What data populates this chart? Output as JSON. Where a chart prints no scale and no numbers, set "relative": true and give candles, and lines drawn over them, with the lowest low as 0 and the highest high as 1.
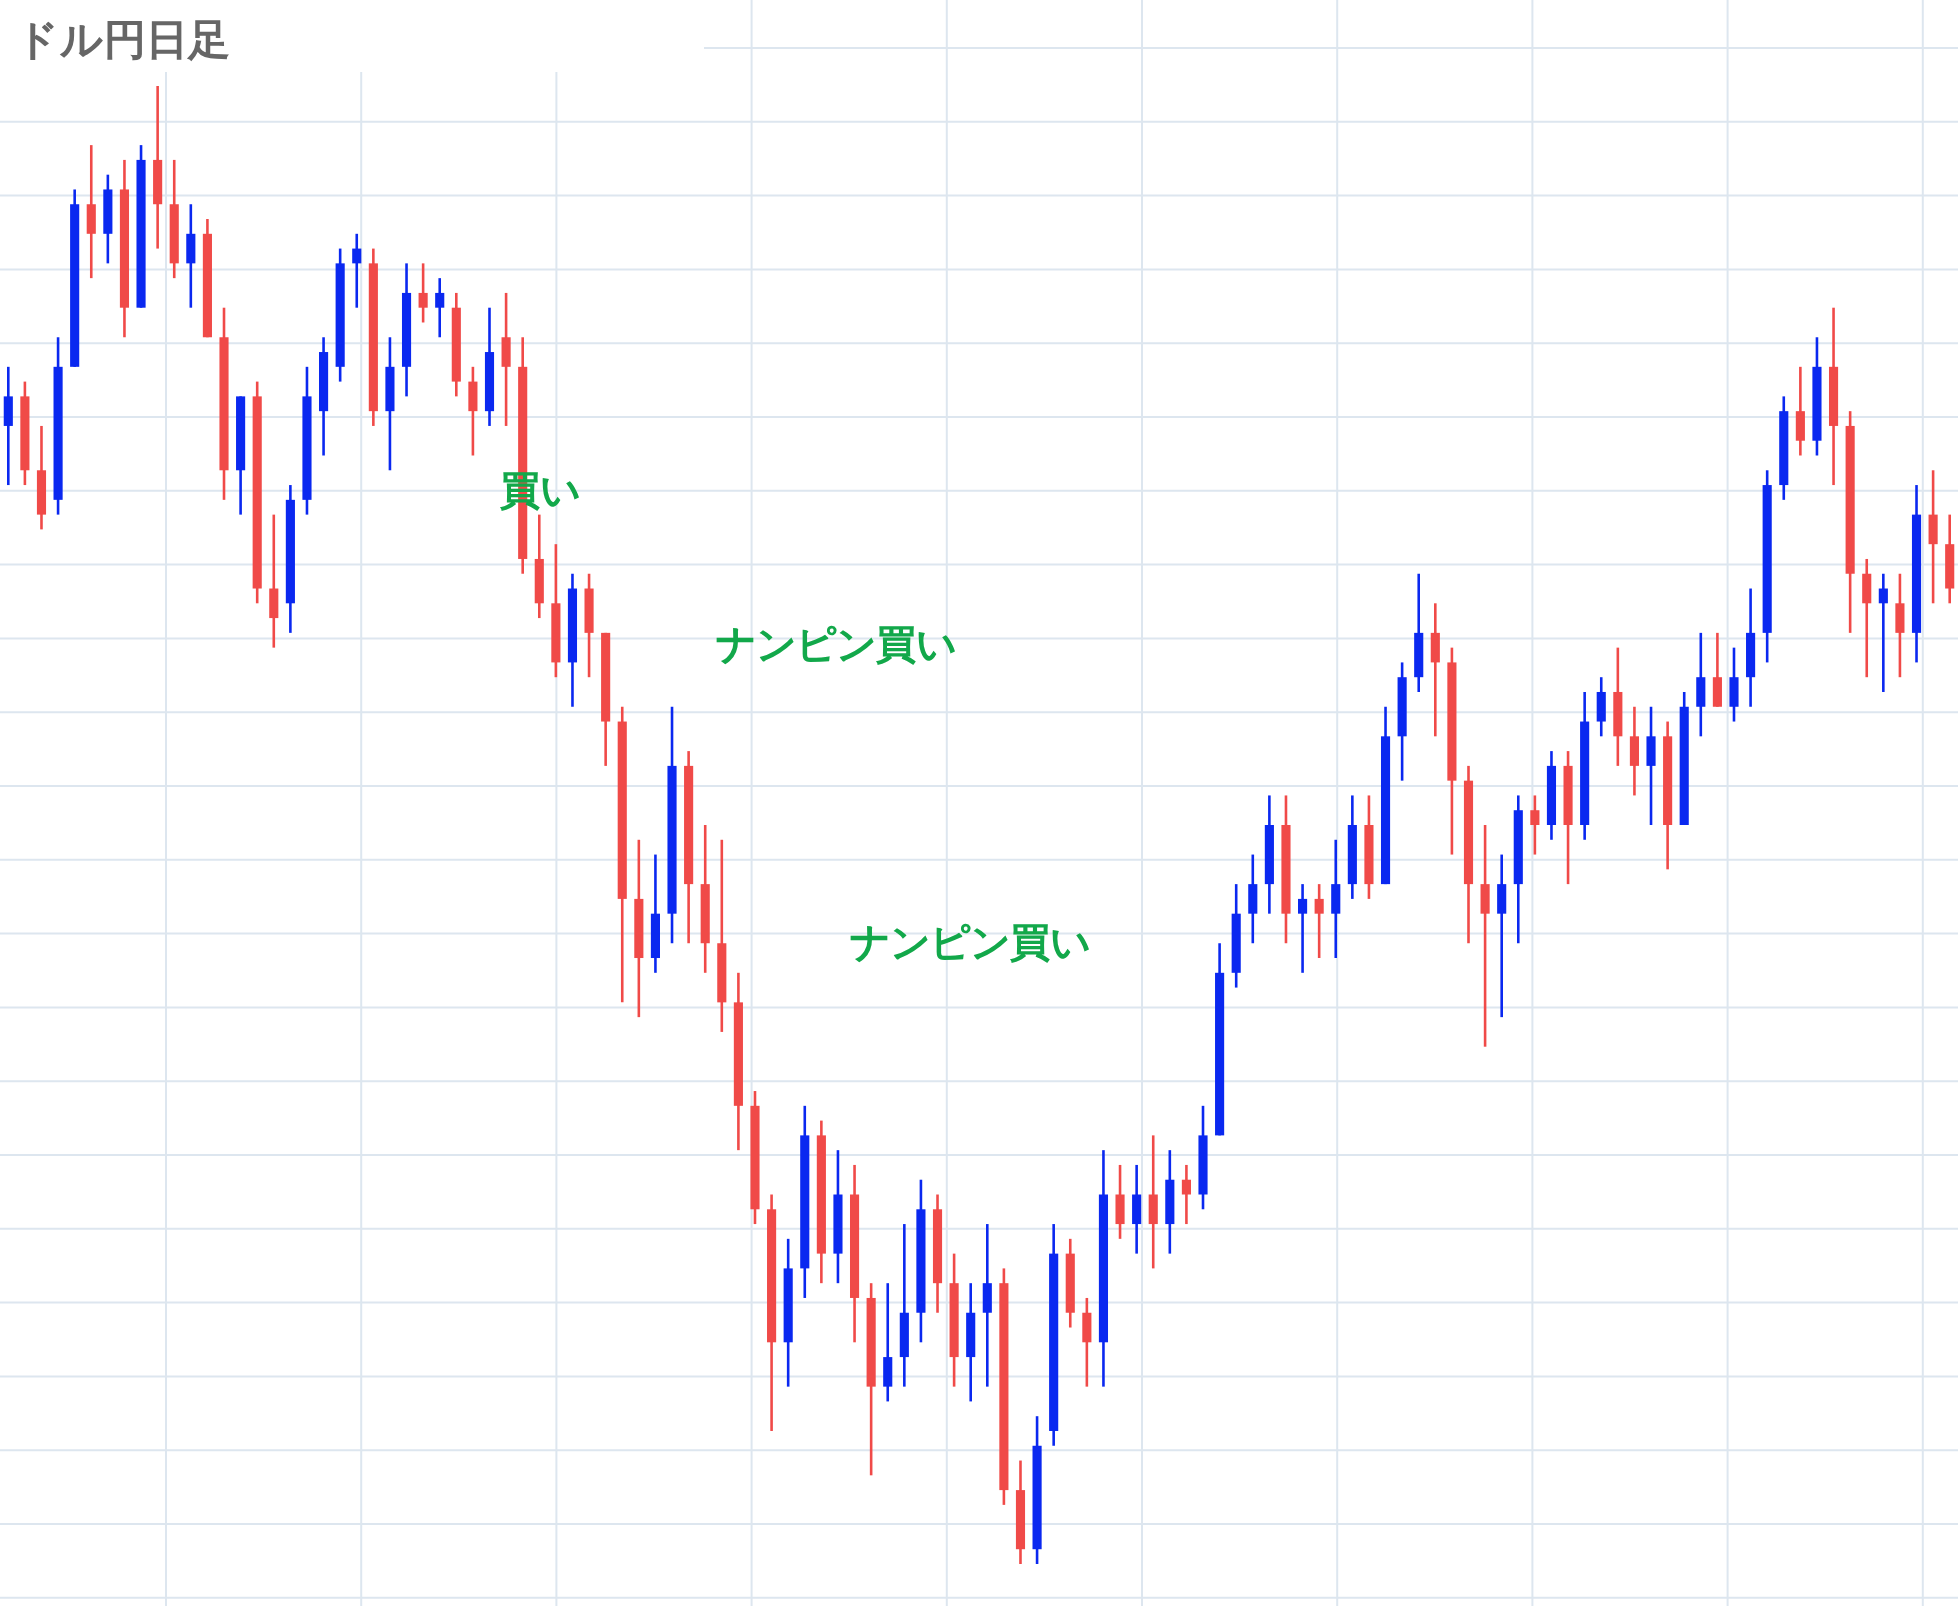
{
  "chart_data": {
    "type": "candlestick",
    "title": "ドル円日足",
    "relative": true,
    "grid": true,
    "colors": [
      "#0a28f0",
      "#f04a48",
      "#f04a48",
      "#0a28f0",
      "#0a28f0",
      "#f04a48",
      "#0a28f0",
      "#f04a48",
      "#0a28f0",
      "#f04a48",
      "#f04a48",
      "#0a28f0",
      "#f04a48",
      "#f04a48",
      "#0a28f0",
      "#f04a48",
      "#f04a48",
      "#0a28f0",
      "#0a28f0",
      "#0a28f0",
      "#0a28f0",
      "#0a28f0",
      "#f04a48",
      "#0a28f0",
      "#0a28f0",
      "#f04a48",
      "#0a28f0",
      "#f04a48",
      "#f04a48",
      "#0a28f0",
      "#f04a48",
      "#f04a48",
      "#f04a48",
      "#f04a48",
      "#0a28f0",
      "#f04a48",
      "#f04a48",
      "#f04a48",
      "#f04a48",
      "#0a28f0",
      "#0a28f0",
      "#f04a48",
      "#f04a48",
      "#f04a48",
      "#f04a48",
      "#f04a48",
      "#f04a48",
      "#0a28f0",
      "#0a28f0",
      "#f04a48",
      "#0a28f0",
      "#f04a48",
      "#f04a48",
      "#0a28f0",
      "#0a28f0",
      "#0a28f0",
      "#f04a48",
      "#f04a48",
      "#0a28f0",
      "#0a28f0",
      "#f04a48",
      "#f04a48",
      "#0a28f0",
      "#0a28f0",
      "#f04a48",
      "#f04a48",
      "#0a28f0",
      "#f04a48",
      "#0a28f0",
      "#f04a48",
      "#0a28f0",
      "#f04a48",
      "#0a28f0",
      "#0a28f0",
      "#0a28f0",
      "#0a28f0",
      "#0a28f0",
      "#f04a48",
      "#0a28f0",
      "#f04a48",
      "#0a28f0",
      "#0a28f0",
      "#f04a48",
      "#0a28f0",
      "#0a28f0",
      "#0a28f0",
      "#f04a48",
      "#f04a48",
      "#f04a48",
      "#f04a48",
      "#0a28f0",
      "#0a28f0",
      "#f04a48",
      "#0a28f0",
      "#f04a48",
      "#0a28f0",
      "#0a28f0",
      "#f04a48",
      "#f04a48",
      "#0a28f0",
      "#f04a48",
      "#0a28f0",
      "#0a28f0",
      "#f04a48",
      "#0a28f0",
      "#0a28f0",
      "#0a28f0",
      "#0a28f0",
      "#f04a48",
      "#0a28f0",
      "#f04a48",
      "#f04a48",
      "#f04a48",
      "#0a28f0",
      "#f04a48",
      "#0a28f0",
      "#f04a48",
      "#f04a48"
    ],
    "annotations": [
      "買い",
      "ナンピン買い",
      "ナンピン買い"
    ],
    "categories": [
      null,
      null,
      null,
      null,
      null,
      null,
      null,
      null,
      null,
      null,
      null,
      null,
      null,
      null,
      null,
      null,
      null,
      null,
      null,
      null,
      null,
      null,
      null,
      null,
      null,
      null,
      null,
      null,
      null,
      null,
      null,
      null,
      null,
      null,
      null,
      null,
      null,
      null,
      null,
      null,
      null,
      null,
      null,
      null,
      null,
      null,
      null,
      null,
      null,
      null,
      null,
      null,
      null,
      null,
      null,
      null,
      null,
      null,
      null,
      null,
      null,
      null,
      null,
      null,
      null,
      null,
      null,
      null,
      null,
      null,
      null,
      null,
      null,
      null,
      null,
      null,
      null,
      null,
      null,
      null,
      null,
      null,
      null,
      null,
      null,
      null,
      null,
      null,
      null,
      null,
      null,
      null,
      null,
      null,
      null,
      null,
      null,
      null,
      null,
      null,
      null,
      null,
      null,
      null,
      null,
      null,
      null,
      null,
      null,
      null,
      null,
      null,
      null,
      null,
      null,
      null,
      null,
      null
    ],
    "ohlc": [
      [
        0.77,
        0.81,
        0.73,
        0.79
      ],
      [
        0.79,
        0.8,
        0.73,
        0.74
      ],
      [
        0.74,
        0.77,
        0.7,
        0.71
      ],
      [
        0.72,
        0.83,
        0.71,
        0.81
      ],
      [
        0.81,
        0.93,
        0.81,
        0.92
      ],
      [
        0.92,
        0.96,
        0.87,
        0.9
      ],
      [
        0.9,
        0.94,
        0.88,
        0.93
      ],
      [
        0.93,
        0.95,
        0.83,
        0.85
      ],
      [
        0.85,
        0.96,
        0.85,
        0.95
      ],
      [
        0.95,
        1.0,
        0.89,
        0.92
      ],
      [
        0.92,
        0.95,
        0.87,
        0.88
      ],
      [
        0.88,
        0.92,
        0.85,
        0.9
      ],
      [
        0.9,
        0.91,
        0.83,
        0.83
      ],
      [
        0.83,
        0.85,
        0.72,
        0.74
      ],
      [
        0.74,
        0.79,
        0.71,
        0.79
      ],
      [
        0.79,
        0.8,
        0.65,
        0.66
      ],
      [
        0.66,
        0.71,
        0.62,
        0.64
      ],
      [
        0.65,
        0.73,
        0.63,
        0.72
      ],
      [
        0.72,
        0.81,
        0.71,
        0.79
      ],
      [
        0.78,
        0.83,
        0.75,
        0.82
      ],
      [
        0.81,
        0.89,
        0.8,
        0.88
      ],
      [
        0.88,
        0.9,
        0.85,
        0.89
      ],
      [
        0.88,
        0.89,
        0.77,
        0.78
      ],
      [
        0.78,
        0.83,
        0.74,
        0.81
      ],
      [
        0.81,
        0.88,
        0.79,
        0.86
      ],
      [
        0.86,
        0.88,
        0.84,
        0.85
      ],
      [
        0.85,
        0.87,
        0.83,
        0.86
      ],
      [
        0.85,
        0.86,
        0.79,
        0.8
      ],
      [
        0.8,
        0.81,
        0.75,
        0.78
      ],
      [
        0.78,
        0.85,
        0.77,
        0.82
      ],
      [
        0.83,
        0.86,
        0.77,
        0.81
      ],
      [
        0.81,
        0.83,
        0.67,
        0.68
      ],
      [
        0.68,
        0.71,
        0.64,
        0.65
      ],
      [
        0.65,
        0.69,
        0.6,
        0.61
      ],
      [
        0.61,
        0.67,
        0.58,
        0.66
      ],
      [
        0.66,
        0.67,
        0.6,
        0.63
      ],
      [
        0.63,
        0.63,
        0.54,
        0.57
      ],
      [
        0.57,
        0.58,
        0.38,
        0.45
      ],
      [
        0.45,
        0.49,
        0.37,
        0.41
      ],
      [
        0.41,
        0.48,
        0.4,
        0.44
      ],
      [
        0.44,
        0.58,
        0.42,
        0.54
      ],
      [
        0.54,
        0.55,
        0.42,
        0.46
      ],
      [
        0.46,
        0.5,
        0.4,
        0.42
      ],
      [
        0.42,
        0.49,
        0.36,
        0.38
      ],
      [
        0.38,
        0.4,
        0.28,
        0.31
      ],
      [
        0.31,
        0.32,
        0.23,
        0.24
      ],
      [
        0.24,
        0.25,
        0.09,
        0.15
      ],
      [
        0.15,
        0.22,
        0.12,
        0.2
      ],
      [
        0.2,
        0.31,
        0.18,
        0.29
      ],
      [
        0.29,
        0.3,
        0.19,
        0.21
      ],
      [
        0.21,
        0.28,
        0.19,
        0.25
      ],
      [
        0.25,
        0.27,
        0.15,
        0.18
      ],
      [
        0.18,
        0.19,
        0.06,
        0.12
      ],
      [
        0.12,
        0.19,
        0.11,
        0.14
      ],
      [
        0.14,
        0.23,
        0.12,
        0.17
      ],
      [
        0.17,
        0.26,
        0.15,
        0.24
      ],
      [
        0.24,
        0.25,
        0.17,
        0.19
      ],
      [
        0.19,
        0.21,
        0.12,
        0.14
      ],
      [
        0.14,
        0.19,
        0.11,
        0.17
      ],
      [
        0.17,
        0.23,
        0.12,
        0.19
      ],
      [
        0.19,
        0.2,
        0.04,
        0.05
      ],
      [
        0.05,
        0.07,
        0.0,
        0.01
      ],
      [
        0.01,
        0.1,
        0.0,
        0.08
      ],
      [
        0.09,
        0.23,
        0.08,
        0.21
      ],
      [
        0.21,
        0.22,
        0.16,
        0.17
      ],
      [
        0.17,
        0.18,
        0.12,
        0.15
      ],
      [
        0.15,
        0.28,
        0.12,
        0.25
      ],
      [
        0.25,
        0.27,
        0.22,
        0.23
      ],
      [
        0.23,
        0.27,
        0.21,
        0.25
      ],
      [
        0.25,
        0.29,
        0.2,
        0.23
      ],
      [
        0.23,
        0.28,
        0.21,
        0.26
      ],
      [
        0.26,
        0.27,
        0.23,
        0.25
      ],
      [
        0.25,
        0.31,
        0.24,
        0.29
      ],
      [
        0.29,
        0.42,
        0.29,
        0.4
      ],
      [
        0.4,
        0.46,
        0.39,
        0.44
      ],
      [
        0.44,
        0.48,
        0.42,
        0.46
      ],
      [
        0.46,
        0.52,
        0.44,
        0.5
      ],
      [
        0.5,
        0.52,
        0.42,
        0.44
      ],
      [
        0.44,
        0.46,
        0.4,
        0.45
      ],
      [
        0.45,
        0.46,
        0.41,
        0.44
      ],
      [
        0.44,
        0.49,
        0.41,
        0.46
      ],
      [
        0.46,
        0.52,
        0.45,
        0.5
      ],
      [
        0.5,
        0.52,
        0.45,
        0.46
      ],
      [
        0.46,
        0.58,
        0.46,
        0.56
      ],
      [
        0.56,
        0.61,
        0.53,
        0.6
      ],
      [
        0.6,
        0.67,
        0.59,
        0.63
      ],
      [
        0.63,
        0.65,
        0.56,
        0.61
      ],
      [
        0.61,
        0.62,
        0.48,
        0.53
      ],
      [
        0.53,
        0.54,
        0.42,
        0.46
      ],
      [
        0.46,
        0.5,
        0.35,
        0.44
      ],
      [
        0.44,
        0.48,
        0.37,
        0.46
      ],
      [
        0.46,
        0.52,
        0.42,
        0.51
      ],
      [
        0.51,
        0.52,
        0.48,
        0.5
      ],
      [
        0.5,
        0.55,
        0.49,
        0.54
      ],
      [
        0.54,
        0.55,
        0.46,
        0.5
      ],
      [
        0.5,
        0.59,
        0.49,
        0.57
      ],
      [
        0.57,
        0.6,
        0.56,
        0.59
      ],
      [
        0.59,
        0.62,
        0.54,
        0.56
      ],
      [
        0.56,
        0.58,
        0.52,
        0.54
      ],
      [
        0.54,
        0.58,
        0.5,
        0.56
      ],
      [
        0.56,
        0.57,
        0.47,
        0.5
      ],
      [
        0.5,
        0.59,
        0.5,
        0.58
      ],
      [
        0.58,
        0.63,
        0.56,
        0.6
      ],
      [
        0.6,
        0.63,
        0.58,
        0.58
      ],
      [
        0.58,
        0.62,
        0.57,
        0.6
      ],
      [
        0.6,
        0.66,
        0.58,
        0.63
      ],
      [
        0.63,
        0.74,
        0.61,
        0.73
      ],
      [
        0.73,
        0.79,
        0.72,
        0.78
      ],
      [
        0.78,
        0.81,
        0.75,
        0.76
      ],
      [
        0.76,
        0.83,
        0.75,
        0.81
      ],
      [
        0.81,
        0.85,
        0.73,
        0.77
      ],
      [
        0.77,
        0.78,
        0.63,
        0.67
      ],
      [
        0.67,
        0.68,
        0.6,
        0.65
      ],
      [
        0.65,
        0.67,
        0.59,
        0.66
      ],
      [
        0.65,
        0.67,
        0.6,
        0.63
      ],
      [
        0.63,
        0.73,
        0.61,
        0.71
      ],
      [
        0.71,
        0.74,
        0.65,
        0.69
      ],
      [
        0.69,
        0.71,
        0.65,
        0.66
      ]
    ]
  }
}
